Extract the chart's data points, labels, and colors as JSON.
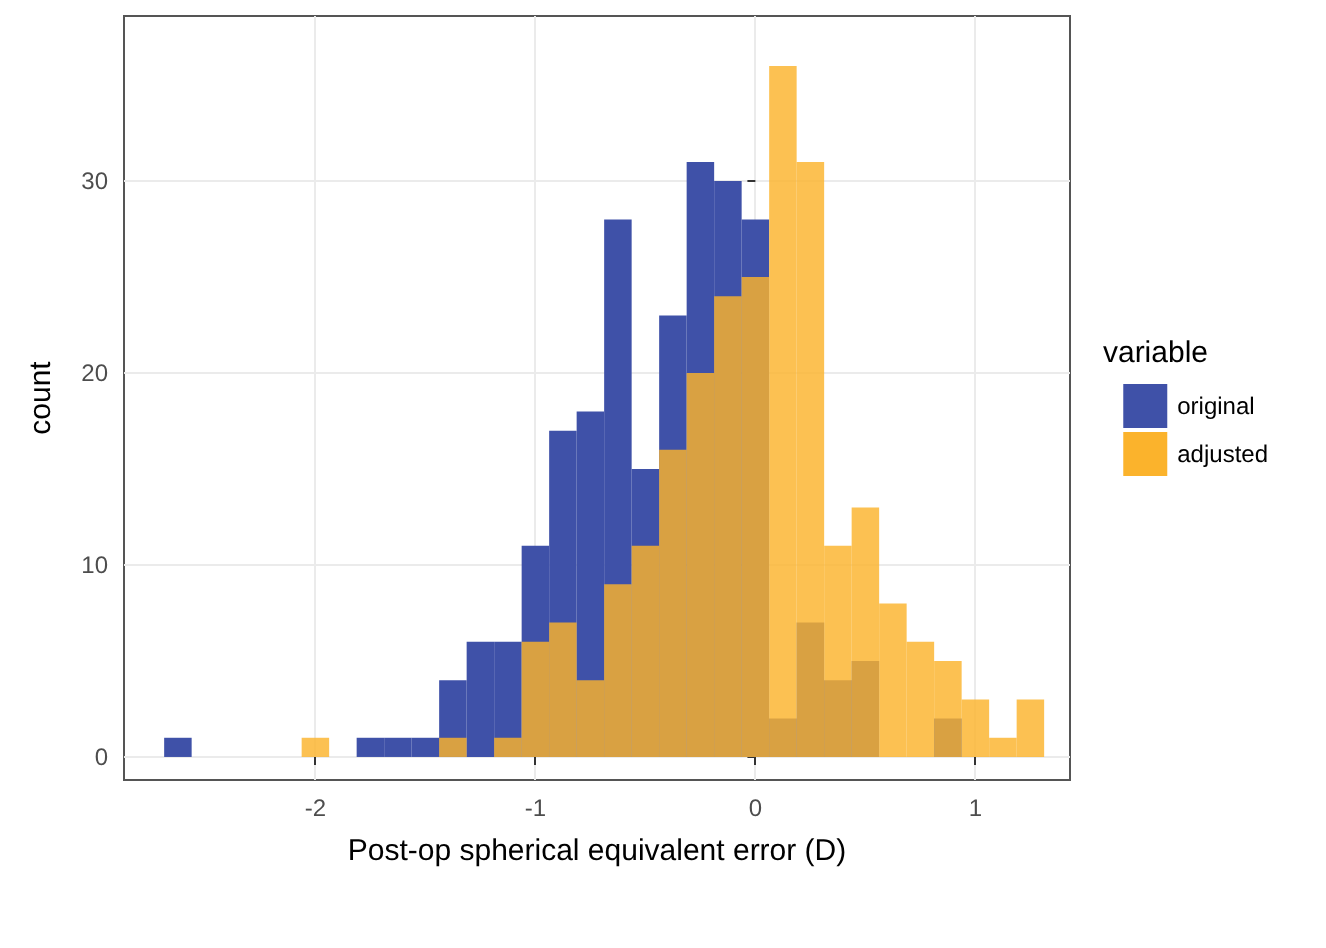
{
  "chart_data": {
    "type": "histogram",
    "xlabel": "Post-op spherical equivalent error (D)",
    "ylabel": "count",
    "legend_title": "variable",
    "legend": "right",
    "grid": true,
    "bins": [
      -2.6875,
      -2.5625,
      -2.4375,
      -2.3125,
      -2.1875,
      -2.0625,
      -1.9375,
      -1.8125,
      -1.6875,
      -1.5625,
      -1.4375,
      -1.3125,
      -1.1875,
      -1.0625,
      -0.9375,
      -0.8125,
      -0.6875,
      -0.5625,
      -0.4375,
      -0.3125,
      -0.1875,
      -0.0625,
      0.0625,
      0.1875,
      0.3125,
      0.4375,
      0.5625,
      0.6875,
      0.8125,
      0.9375,
      1.0625,
      1.1875,
      1.3125
    ],
    "series": [
      {
        "name": "original",
        "color": "#3f51a8",
        "values": [
          1,
          0,
          0,
          0,
          0,
          0,
          0,
          1,
          1,
          1,
          4,
          6,
          6,
          11,
          17,
          18,
          28,
          15,
          23,
          31,
          30,
          28,
          2,
          7,
          4,
          5,
          0,
          0,
          2,
          0,
          0,
          0
        ]
      },
      {
        "name": "adjusted",
        "color": "#fbb32c",
        "values": [
          0,
          0,
          0,
          0,
          0,
          1,
          0,
          0,
          0,
          0,
          1,
          0,
          1,
          6,
          7,
          4,
          9,
          11,
          16,
          20,
          24,
          25,
          36,
          31,
          11,
          13,
          8,
          6,
          5,
          3,
          1,
          3
        ]
      }
    ],
    "xlim": [
      -2.87,
      1.43
    ],
    "xticks": [
      -2,
      -1,
      0,
      1
    ],
    "ylim": [
      -1.2,
      38.6
    ],
    "yticks": [
      0,
      10,
      20,
      30
    ]
  }
}
